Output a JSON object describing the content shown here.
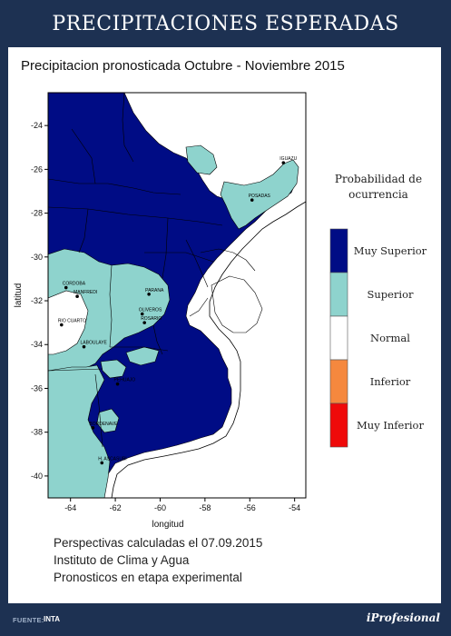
{
  "header": {
    "title": "PRECIPITACIONES ESPERADAS"
  },
  "map": {
    "title": "Precipitacion pronosticada Octubre - Noviembre 2015",
    "x_axis_label": "longitud",
    "y_axis_label": "latitud",
    "x_ticks": [
      "-64",
      "-62",
      "-60",
      "-58",
      "-56",
      "-54"
    ],
    "y_ticks": [
      "-24",
      "-26",
      "-28",
      "-30",
      "-32",
      "-34",
      "-36",
      "-38",
      "-40"
    ],
    "cities": [
      {
        "name": "CORDOBA",
        "lon": -64.2,
        "lat": -31.4
      },
      {
        "name": "MANFREDI",
        "lon": -63.7,
        "lat": -31.8
      },
      {
        "name": "RIO CUARTO",
        "lon": -64.4,
        "lat": -33.1
      },
      {
        "name": "LABOULAYE",
        "lon": -63.4,
        "lat": -34.1
      },
      {
        "name": "PARANA",
        "lon": -60.5,
        "lat": -31.7
      },
      {
        "name": "OLIVEROS",
        "lon": -60.8,
        "lat": -32.6
      },
      {
        "name": "ROSARIO",
        "lon": -60.7,
        "lat": -33.0
      },
      {
        "name": "POSADAS",
        "lon": -55.9,
        "lat": -27.4
      },
      {
        "name": "IGUAZU",
        "lon": -54.5,
        "lat": -25.7
      },
      {
        "name": "PEHUAJO",
        "lon": -61.9,
        "lat": -35.8
      },
      {
        "name": "BORDENAVE",
        "lon": -63.0,
        "lat": -37.8
      },
      {
        "name": "H. ASCASUBI",
        "lon": -62.6,
        "lat": -39.4
      }
    ],
    "legend": {
      "title_line1": "Probabilidad de",
      "title_line2": "ocurrencia",
      "items": [
        {
          "label": "Muy Superior",
          "color": "#000c85"
        },
        {
          "label": "Superior",
          "color": "#8ed3cd"
        },
        {
          "label": "Normal",
          "color": "#ffffff"
        },
        {
          "label": "Inferior",
          "color": "#f5883e"
        },
        {
          "label": "Muy Inferior",
          "color": "#ef0a0a"
        }
      ]
    }
  },
  "footnotes": {
    "line1": "Perspectivas calculadas el 07.09.2015",
    "line2": "Instituto de Clima y Agua",
    "line3": "Pronosticos en etapa experimental"
  },
  "footer": {
    "source_label": "FUENTE:",
    "source_value": "INTA",
    "brand": "iProfesional"
  }
}
